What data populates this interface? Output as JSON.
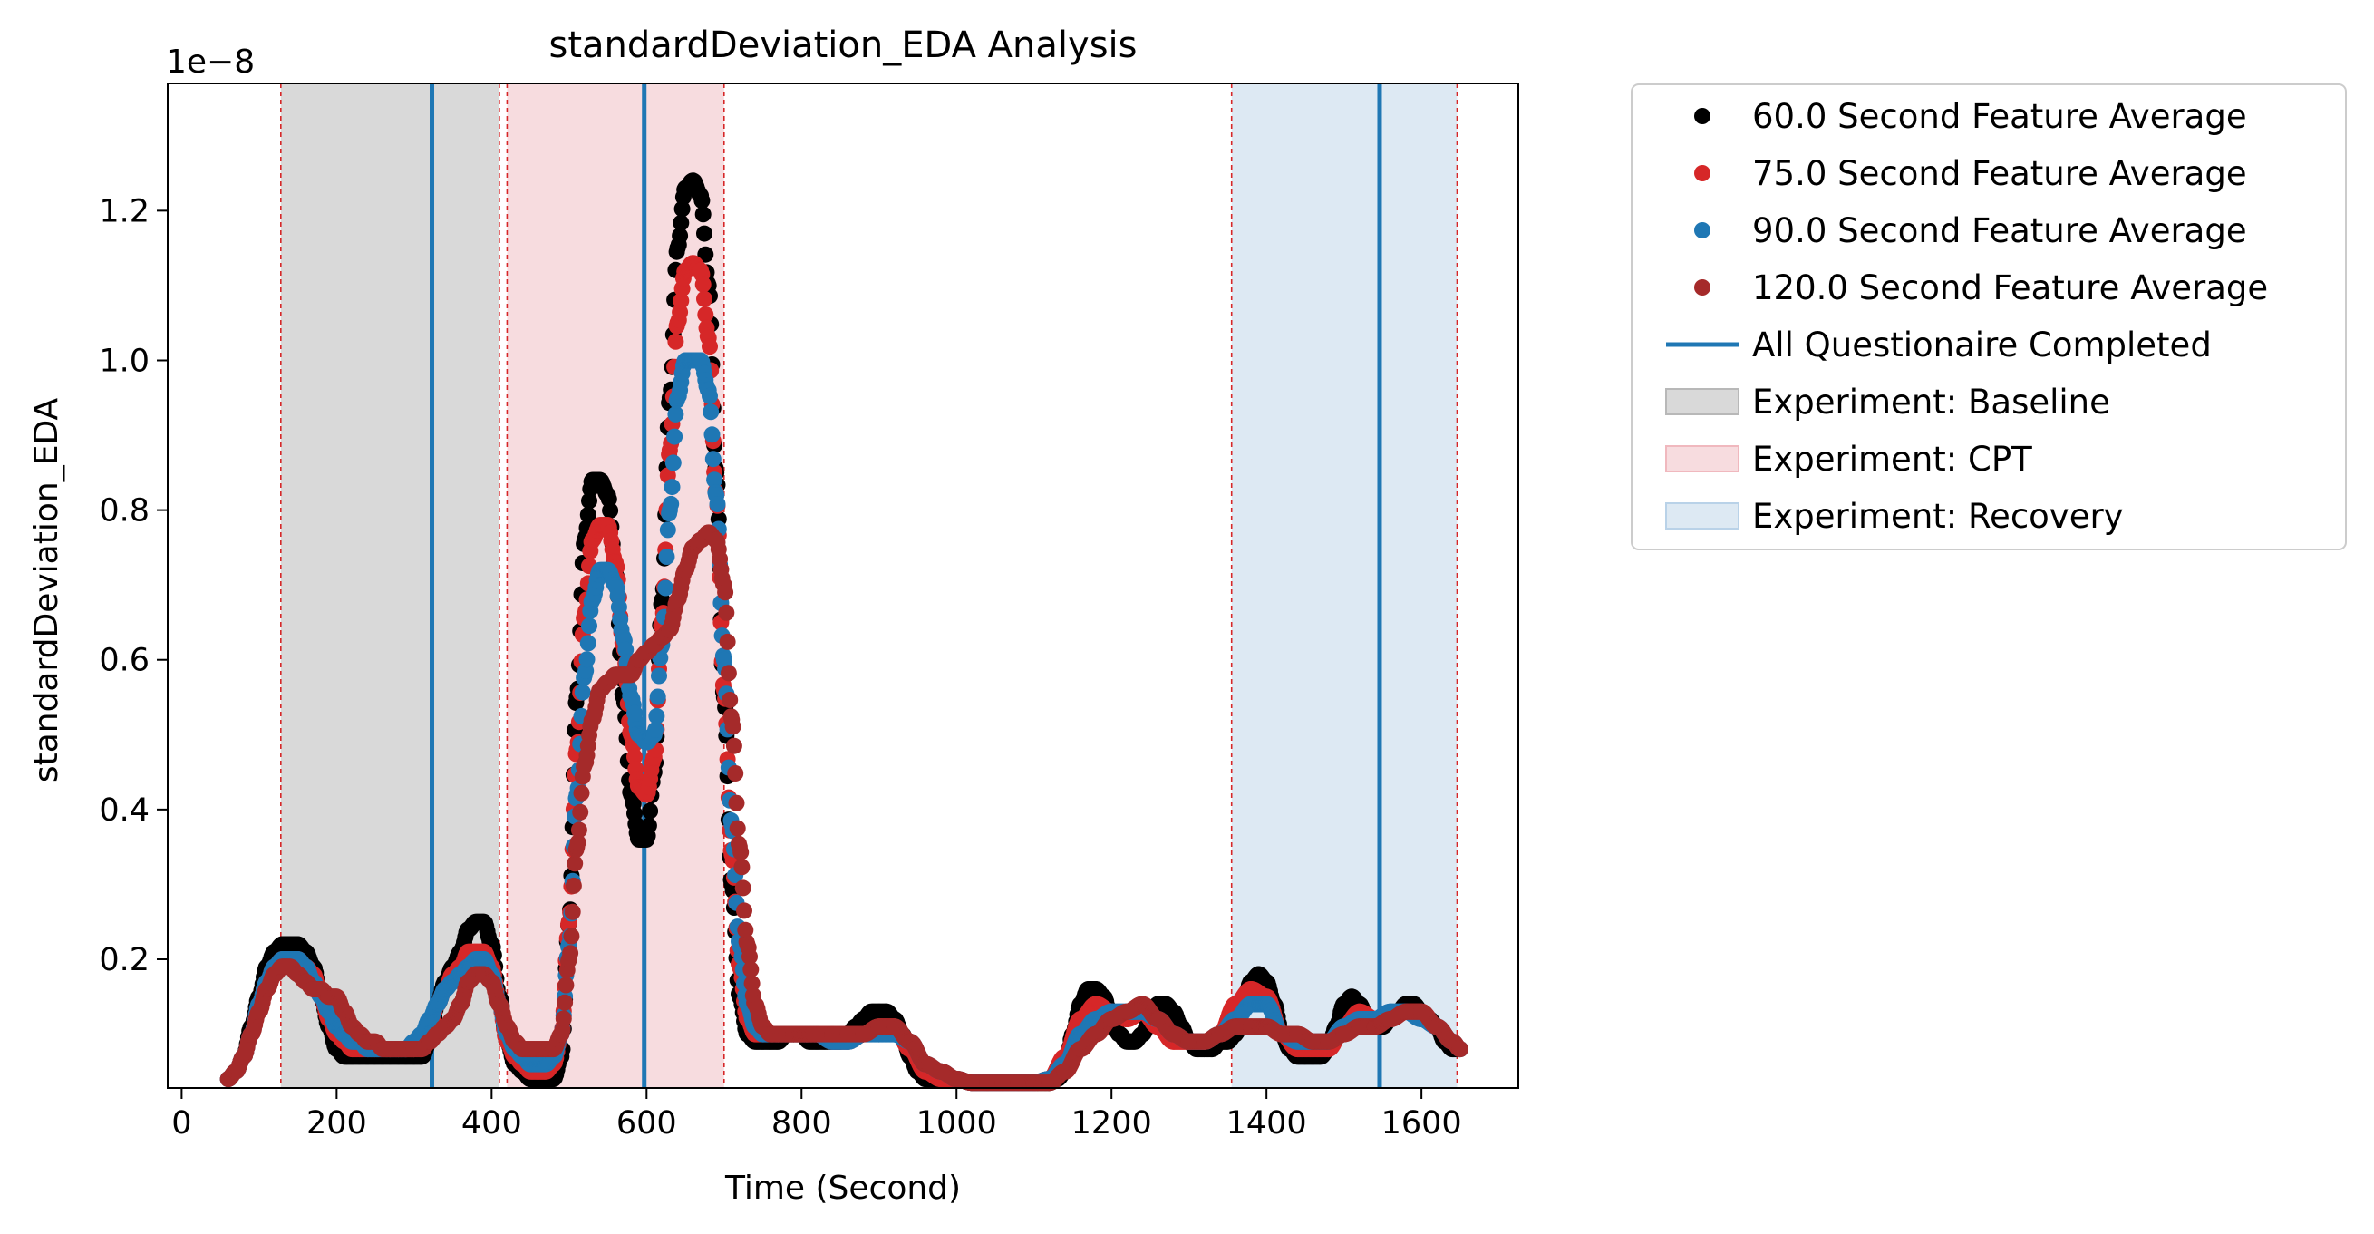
{
  "chart_data": {
    "type": "scatter",
    "title": "standardDeviation_EDA Analysis",
    "xlabel": "Time (Second)",
    "ylabel": "standardDeviation_EDA",
    "y_offset_label": "1e−8",
    "xlim": [
      -18,
      1725
    ],
    "ylim": [
      0.028,
      1.37
    ],
    "xticks": [
      0,
      200,
      400,
      600,
      800,
      1000,
      1200,
      1400,
      1600
    ],
    "xtick_labels": [
      "0",
      "200",
      "400",
      "600",
      "800",
      "1000",
      "1200",
      "1400",
      "1600"
    ],
    "yticks": [
      0.2,
      0.4,
      0.6,
      0.8,
      1.0,
      1.2
    ],
    "ytick_labels": [
      "0.2",
      "0.4",
      "0.6",
      "0.8",
      "1.0",
      "1.2"
    ],
    "grid": false,
    "legend_position": "outside-right-top",
    "regions": [
      {
        "name": "Experiment: Baseline",
        "start": 128,
        "end": 410,
        "color": "#d9d9d9"
      },
      {
        "name": "Experiment: CPT",
        "start": 420,
        "end": 700,
        "color": "#f7dcdf"
      },
      {
        "name": "Experiment: Recovery",
        "start": 1355,
        "end": 1646,
        "color": "#dde9f3"
      }
    ],
    "region_boundary_color": "#d62728",
    "questionnaire_lines": {
      "name": "All Questionaire Completed",
      "x": [
        323,
        597,
        1546
      ],
      "color": "#1f77b4"
    },
    "series": [
      {
        "name": "60.0 Second Feature Average",
        "color": "#000000",
        "x": [
          60,
          70,
          80,
          90,
          100,
          110,
          120,
          130,
          140,
          150,
          160,
          170,
          180,
          190,
          200,
          210,
          220,
          230,
          240,
          250,
          260,
          270,
          280,
          290,
          300,
          310,
          320,
          330,
          340,
          350,
          360,
          370,
          380,
          390,
          400,
          410,
          420,
          430,
          440,
          450,
          460,
          470,
          480,
          490,
          500,
          510,
          520,
          530,
          540,
          550,
          560,
          570,
          580,
          590,
          600,
          610,
          620,
          630,
          640,
          650,
          660,
          670,
          680,
          690,
          700,
          710,
          720,
          730,
          740,
          750,
          760,
          770,
          780,
          790,
          800,
          810,
          820,
          830,
          840,
          850,
          860,
          870,
          880,
          890,
          900,
          910,
          920,
          930,
          940,
          950,
          960,
          970,
          980,
          990,
          1000,
          1020,
          1040,
          1060,
          1080,
          1100,
          1120,
          1130,
          1140,
          1150,
          1160,
          1170,
          1180,
          1190,
          1200,
          1210,
          1220,
          1230,
          1240,
          1250,
          1260,
          1270,
          1280,
          1290,
          1300,
          1310,
          1320,
          1330,
          1340,
          1350,
          1360,
          1370,
          1380,
          1390,
          1400,
          1410,
          1420,
          1430,
          1440,
          1450,
          1460,
          1470,
          1480,
          1490,
          1500,
          1510,
          1520,
          1530,
          1540,
          1550,
          1560,
          1570,
          1580,
          1590,
          1600,
          1610,
          1620,
          1630,
          1640,
          1650
        ],
        "y": [
          0.04,
          0.05,
          0.07,
          0.11,
          0.15,
          0.19,
          0.21,
          0.22,
          0.22,
          0.22,
          0.21,
          0.19,
          0.15,
          0.11,
          0.08,
          0.07,
          0.07,
          0.07,
          0.07,
          0.07,
          0.07,
          0.07,
          0.07,
          0.07,
          0.07,
          0.07,
          0.09,
          0.14,
          0.17,
          0.19,
          0.21,
          0.24,
          0.25,
          0.25,
          0.22,
          0.15,
          0.09,
          0.06,
          0.05,
          0.04,
          0.04,
          0.04,
          0.04,
          0.07,
          0.25,
          0.55,
          0.76,
          0.84,
          0.84,
          0.82,
          0.72,
          0.55,
          0.42,
          0.36,
          0.36,
          0.45,
          0.68,
          0.95,
          1.15,
          1.23,
          1.24,
          1.22,
          1.1,
          0.85,
          0.55,
          0.3,
          0.15,
          0.1,
          0.09,
          0.09,
          0.09,
          0.09,
          0.1,
          0.1,
          0.1,
          0.09,
          0.09,
          0.09,
          0.09,
          0.09,
          0.1,
          0.11,
          0.12,
          0.13,
          0.13,
          0.13,
          0.12,
          0.1,
          0.07,
          0.05,
          0.04,
          0.04,
          0.04,
          0.04,
          0.04,
          0.035,
          0.035,
          0.035,
          0.035,
          0.035,
          0.035,
          0.04,
          0.05,
          0.1,
          0.14,
          0.16,
          0.16,
          0.15,
          0.12,
          0.1,
          0.09,
          0.09,
          0.1,
          0.12,
          0.14,
          0.14,
          0.13,
          0.11,
          0.09,
          0.08,
          0.08,
          0.08,
          0.09,
          0.09,
          0.1,
          0.14,
          0.17,
          0.18,
          0.17,
          0.14,
          0.1,
          0.08,
          0.07,
          0.07,
          0.07,
          0.07,
          0.08,
          0.11,
          0.14,
          0.15,
          0.14,
          0.12,
          0.11,
          0.11,
          0.12,
          0.13,
          0.14,
          0.14,
          0.13,
          0.12,
          0.11,
          0.09,
          0.08,
          0.08
        ]
      },
      {
        "name": "75.0 Second Feature Average",
        "color": "#d62728",
        "x": [
          60,
          70,
          80,
          90,
          100,
          110,
          120,
          130,
          140,
          150,
          160,
          170,
          180,
          190,
          200,
          210,
          220,
          230,
          240,
          250,
          260,
          270,
          280,
          290,
          300,
          310,
          320,
          330,
          340,
          350,
          360,
          370,
          380,
          390,
          400,
          410,
          420,
          430,
          440,
          450,
          460,
          470,
          480,
          490,
          500,
          510,
          520,
          530,
          540,
          550,
          560,
          570,
          580,
          590,
          600,
          610,
          620,
          630,
          640,
          650,
          660,
          670,
          680,
          690,
          700,
          710,
          720,
          730,
          740,
          750,
          760,
          770,
          780,
          790,
          800,
          820,
          840,
          860,
          880,
          900,
          920,
          940,
          960,
          980,
          1000,
          1020,
          1040,
          1060,
          1080,
          1100,
          1120,
          1140,
          1160,
          1180,
          1200,
          1220,
          1240,
          1260,
          1280,
          1300,
          1320,
          1340,
          1360,
          1380,
          1400,
          1420,
          1440,
          1460,
          1480,
          1500,
          1520,
          1540,
          1560,
          1580,
          1600,
          1620,
          1640,
          1650
        ],
        "y": [
          0.04,
          0.05,
          0.07,
          0.1,
          0.14,
          0.17,
          0.19,
          0.2,
          0.2,
          0.2,
          0.19,
          0.18,
          0.15,
          0.12,
          0.1,
          0.09,
          0.08,
          0.08,
          0.08,
          0.08,
          0.08,
          0.08,
          0.08,
          0.08,
          0.08,
          0.09,
          0.11,
          0.14,
          0.16,
          0.18,
          0.19,
          0.21,
          0.21,
          0.21,
          0.19,
          0.14,
          0.09,
          0.07,
          0.06,
          0.05,
          0.05,
          0.05,
          0.06,
          0.1,
          0.25,
          0.48,
          0.66,
          0.76,
          0.78,
          0.78,
          0.73,
          0.62,
          0.5,
          0.43,
          0.42,
          0.47,
          0.65,
          0.88,
          1.05,
          1.12,
          1.13,
          1.12,
          1.03,
          0.82,
          0.56,
          0.34,
          0.19,
          0.12,
          0.1,
          0.1,
          0.1,
          0.1,
          0.1,
          0.1,
          0.1,
          0.1,
          0.09,
          0.09,
          0.1,
          0.11,
          0.11,
          0.08,
          0.05,
          0.04,
          0.04,
          0.035,
          0.035,
          0.035,
          0.035,
          0.035,
          0.04,
          0.07,
          0.12,
          0.14,
          0.13,
          0.12,
          0.13,
          0.11,
          0.09,
          0.09,
          0.09,
          0.1,
          0.14,
          0.16,
          0.15,
          0.1,
          0.08,
          0.08,
          0.08,
          0.11,
          0.13,
          0.12,
          0.12,
          0.13,
          0.13,
          0.11,
          0.09,
          0.08
        ]
      },
      {
        "name": "90.0 Second Feature Average",
        "color": "#1f77b4",
        "x": [
          60,
          70,
          80,
          90,
          100,
          110,
          120,
          130,
          140,
          150,
          160,
          170,
          180,
          190,
          200,
          210,
          220,
          230,
          240,
          250,
          260,
          270,
          280,
          290,
          300,
          310,
          320,
          330,
          340,
          350,
          360,
          370,
          380,
          390,
          400,
          410,
          420,
          430,
          440,
          450,
          460,
          470,
          480,
          490,
          500,
          510,
          520,
          530,
          540,
          550,
          560,
          570,
          580,
          590,
          600,
          610,
          620,
          630,
          640,
          650,
          660,
          670,
          680,
          690,
          700,
          710,
          720,
          730,
          740,
          750,
          760,
          770,
          780,
          790,
          800,
          820,
          840,
          860,
          880,
          900,
          920,
          940,
          960,
          980,
          1000,
          1020,
          1040,
          1060,
          1080,
          1100,
          1120,
          1140,
          1160,
          1180,
          1200,
          1220,
          1240,
          1260,
          1280,
          1300,
          1320,
          1340,
          1360,
          1380,
          1400,
          1420,
          1440,
          1460,
          1480,
          1500,
          1520,
          1540,
          1560,
          1580,
          1600,
          1620,
          1640,
          1650
        ],
        "y": [
          0.04,
          0.05,
          0.07,
          0.1,
          0.14,
          0.17,
          0.19,
          0.2,
          0.2,
          0.2,
          0.19,
          0.17,
          0.15,
          0.13,
          0.11,
          0.1,
          0.09,
          0.09,
          0.08,
          0.08,
          0.08,
          0.08,
          0.08,
          0.08,
          0.09,
          0.1,
          0.12,
          0.14,
          0.16,
          0.17,
          0.18,
          0.19,
          0.2,
          0.2,
          0.18,
          0.14,
          0.1,
          0.08,
          0.07,
          0.06,
          0.06,
          0.06,
          0.07,
          0.1,
          0.22,
          0.42,
          0.58,
          0.68,
          0.72,
          0.72,
          0.7,
          0.63,
          0.55,
          0.5,
          0.49,
          0.5,
          0.62,
          0.8,
          0.95,
          1.0,
          1.0,
          1.0,
          0.96,
          0.82,
          0.6,
          0.38,
          0.22,
          0.14,
          0.11,
          0.1,
          0.1,
          0.1,
          0.1,
          0.1,
          0.1,
          0.1,
          0.09,
          0.09,
          0.1,
          0.1,
          0.1,
          0.09,
          0.06,
          0.05,
          0.04,
          0.035,
          0.035,
          0.035,
          0.035,
          0.035,
          0.04,
          0.06,
          0.1,
          0.12,
          0.13,
          0.13,
          0.13,
          0.12,
          0.1,
          0.09,
          0.09,
          0.1,
          0.12,
          0.14,
          0.14,
          0.1,
          0.09,
          0.09,
          0.09,
          0.11,
          0.12,
          0.12,
          0.13,
          0.13,
          0.12,
          0.11,
          0.09,
          0.08
        ]
      },
      {
        "name": "120.0 Second Feature Average",
        "color": "#a52a2a",
        "x": [
          60,
          70,
          80,
          90,
          100,
          110,
          120,
          130,
          140,
          150,
          160,
          170,
          180,
          190,
          200,
          210,
          220,
          230,
          240,
          250,
          260,
          270,
          280,
          290,
          300,
          310,
          320,
          330,
          340,
          350,
          360,
          370,
          380,
          390,
          400,
          410,
          420,
          430,
          440,
          450,
          460,
          470,
          480,
          490,
          500,
          510,
          520,
          530,
          540,
          550,
          560,
          570,
          580,
          590,
          600,
          610,
          620,
          630,
          640,
          650,
          660,
          670,
          680,
          690,
          700,
          710,
          720,
          730,
          740,
          750,
          760,
          770,
          780,
          790,
          800,
          820,
          840,
          860,
          880,
          900,
          920,
          940,
          960,
          980,
          1000,
          1020,
          1040,
          1060,
          1080,
          1100,
          1120,
          1140,
          1160,
          1180,
          1200,
          1220,
          1240,
          1260,
          1280,
          1300,
          1320,
          1340,
          1360,
          1380,
          1400,
          1420,
          1440,
          1460,
          1480,
          1500,
          1520,
          1540,
          1560,
          1580,
          1600,
          1620,
          1640,
          1650
        ],
        "y": [
          0.04,
          0.05,
          0.07,
          0.1,
          0.13,
          0.16,
          0.18,
          0.19,
          0.19,
          0.18,
          0.17,
          0.16,
          0.16,
          0.15,
          0.15,
          0.13,
          0.11,
          0.1,
          0.09,
          0.09,
          0.08,
          0.08,
          0.08,
          0.08,
          0.08,
          0.08,
          0.09,
          0.1,
          0.11,
          0.12,
          0.14,
          0.17,
          0.18,
          0.18,
          0.17,
          0.14,
          0.11,
          0.09,
          0.08,
          0.08,
          0.08,
          0.08,
          0.08,
          0.1,
          0.2,
          0.35,
          0.46,
          0.52,
          0.56,
          0.57,
          0.58,
          0.58,
          0.58,
          0.6,
          0.61,
          0.62,
          0.63,
          0.64,
          0.68,
          0.72,
          0.75,
          0.76,
          0.77,
          0.76,
          0.7,
          0.52,
          0.35,
          0.22,
          0.14,
          0.11,
          0.1,
          0.1,
          0.1,
          0.1,
          0.1,
          0.1,
          0.1,
          0.1,
          0.1,
          0.11,
          0.11,
          0.09,
          0.06,
          0.05,
          0.04,
          0.035,
          0.035,
          0.035,
          0.035,
          0.035,
          0.035,
          0.05,
          0.08,
          0.1,
          0.12,
          0.13,
          0.14,
          0.12,
          0.1,
          0.09,
          0.09,
          0.1,
          0.11,
          0.11,
          0.11,
          0.1,
          0.1,
          0.09,
          0.09,
          0.1,
          0.11,
          0.11,
          0.12,
          0.13,
          0.13,
          0.11,
          0.09,
          0.08
        ]
      }
    ],
    "legend_entries": [
      {
        "label": "60.0 Second Feature Average",
        "kind": "dot",
        "color": "#000000"
      },
      {
        "label": "75.0 Second Feature Average",
        "kind": "dot",
        "color": "#d62728"
      },
      {
        "label": "90.0 Second Feature Average",
        "kind": "dot",
        "color": "#1f77b4"
      },
      {
        "label": "120.0 Second Feature Average",
        "kind": "dot",
        "color": "#a52a2a"
      },
      {
        "label": "All Questionaire Completed",
        "kind": "line",
        "color": "#1f77b4"
      },
      {
        "label": "Experiment: Baseline",
        "kind": "patch",
        "color": "#d9d9d9"
      },
      {
        "label": "Experiment: CPT",
        "kind": "patch",
        "color": "#f7dcdf"
      },
      {
        "label": "Experiment: Recovery",
        "kind": "patch",
        "color": "#dde9f3"
      }
    ]
  }
}
